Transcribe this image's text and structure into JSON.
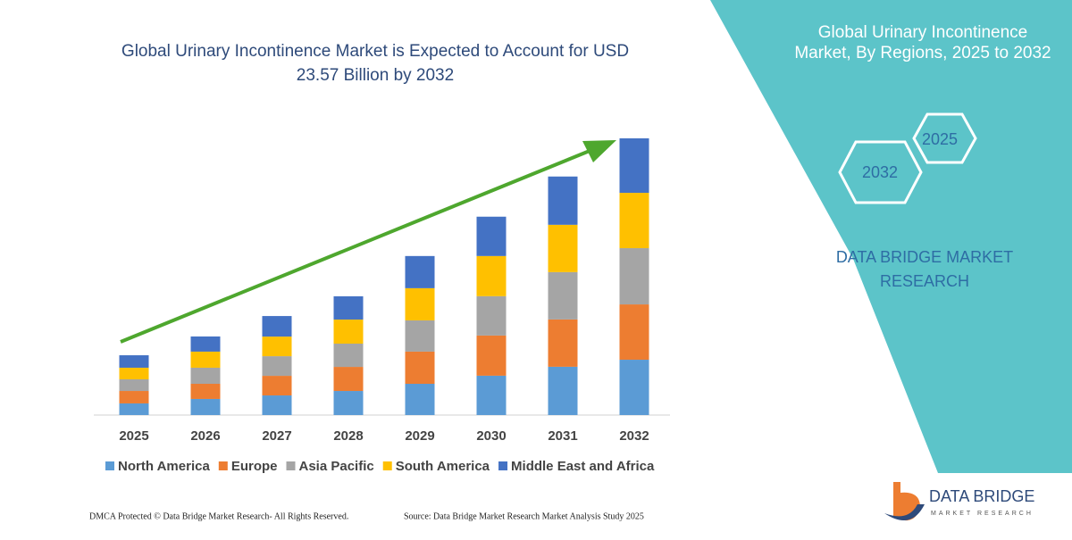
{
  "chart_data": {
    "type": "stacked-bar",
    "title": "Global Urinary Incontinence Market is Expected to Account for USD 23.57 Billion by 2032",
    "categories": [
      "2025",
      "2026",
      "2027",
      "2028",
      "2029",
      "2030",
      "2031",
      "2032"
    ],
    "series": [
      {
        "name": "North America",
        "color": "#5b9bd5",
        "values": [
          0.99,
          1.37,
          1.67,
          2.05,
          2.66,
          3.35,
          4.11,
          4.71
        ]
      },
      {
        "name": "Europe",
        "color": "#ed7d31",
        "values": [
          1.06,
          1.29,
          1.67,
          2.05,
          2.74,
          3.42,
          4.03,
          4.71
        ]
      },
      {
        "name": "Asia Pacific",
        "color": "#a5a5a5",
        "values": [
          0.99,
          1.37,
          1.67,
          1.98,
          2.66,
          3.35,
          4.03,
          4.79
        ]
      },
      {
        "name": "South America",
        "color": "#ffc000",
        "values": [
          0.99,
          1.37,
          1.67,
          2.05,
          2.74,
          3.42,
          4.03,
          4.71
        ]
      },
      {
        "name": "Middle East and Africa",
        "color": "#4472c4",
        "values": [
          1.06,
          1.29,
          1.75,
          1.98,
          2.74,
          3.35,
          4.11,
          4.64
        ]
      }
    ]
  },
  "side_panel": {
    "title": "Global Urinary Incontinence Market, By Regions, 2025 to 2032",
    "hexagons": [
      "2032",
      "2025"
    ],
    "brand": "DATA BRIDGE MARKET RESEARCH"
  },
  "footer": {
    "left": "DMCA Protected © Data Bridge Market Research-  All Rights Reserved.",
    "right": "Source: Data Bridge Market Research  Market Analysis Study 2025"
  },
  "logo": {
    "name": "DATA BRIDGE",
    "tagline": "MARKET RESEARCH"
  }
}
